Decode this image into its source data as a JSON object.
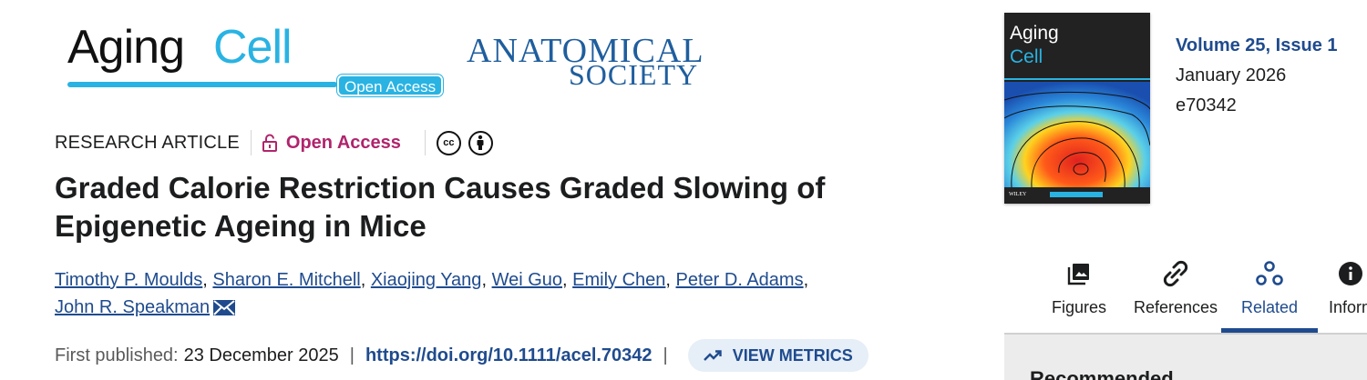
{
  "journal_logo": {
    "part1": "Aging",
    "part2": "Cell",
    "badge": "Open Access"
  },
  "society_logo": {
    "line1": "ANATOMICAL",
    "line2": "SOCIETY"
  },
  "article": {
    "type": "RESEARCH ARTICLE",
    "open_access": "Open Access",
    "license_icons": [
      "cc-icon",
      "attribution-icon"
    ],
    "title": "Graded Calorie Restriction Causes Graded Slowing of Epigenetic Ageing in Mice",
    "authors": [
      "Timothy P. Moulds",
      "Sharon E. Mitchell",
      "Xiaojing Yang",
      "Wei Guo",
      "Emily Chen",
      "Peter D. Adams",
      "John R. Speakman"
    ],
    "first_published_label": "First published:",
    "first_published_date": "23 December 2025",
    "doi": "https://doi.org/10.1111/acel.70342",
    "metrics_label": "VIEW METRICS"
  },
  "issue": {
    "cover_title1": "Aging",
    "cover_title2": "Cell",
    "cover_publisher": "WILEY",
    "volume": "Volume 25, Issue 1",
    "date": "January 2026",
    "article_number": "e70342"
  },
  "tabs": [
    {
      "label": "Figures",
      "icon": "image-icon"
    },
    {
      "label": "References",
      "icon": "link-icon"
    },
    {
      "label": "Related",
      "icon": "related-icon",
      "active": true
    },
    {
      "label": "Information",
      "icon": "info-icon"
    }
  ],
  "recommended_title": "Recommended",
  "colors": {
    "link": "#1f4b8e",
    "open_access": "#b0246c",
    "journal_blue": "#29b3e3"
  }
}
